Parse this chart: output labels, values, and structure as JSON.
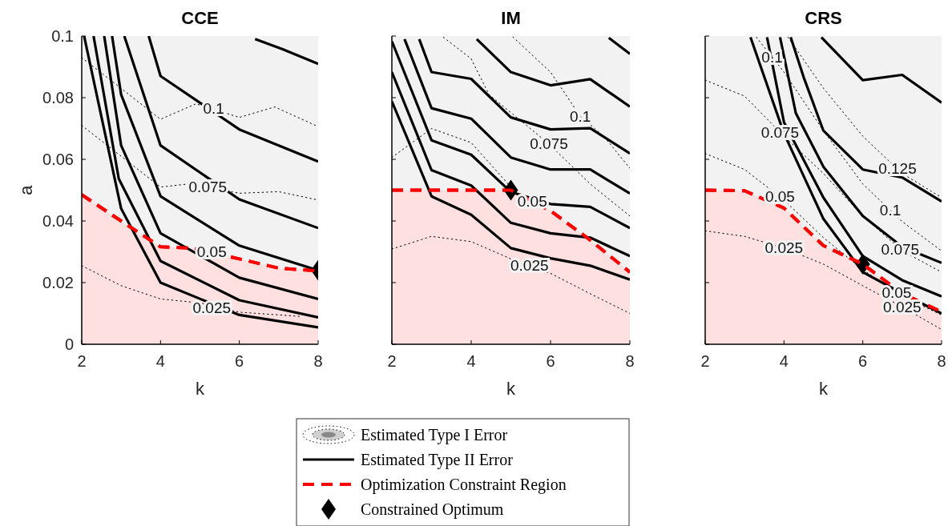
{
  "chart_data": [
    {
      "type": "line",
      "title": "CCE",
      "xlabel": "k",
      "ylabel": "a",
      "xlim": [
        2,
        8
      ],
      "ylim": [
        0,
        0.1
      ],
      "xticks": [
        2,
        4,
        6,
        8
      ],
      "yticks": [
        0,
        0.02,
        0.04,
        0.06,
        0.08,
        0.1
      ],
      "series": [
        {
          "type": "line",
          "line_style": "dotted",
          "color": "#000000",
          "x": [
            2,
            4,
            4.9,
            6,
            6.9,
            8
          ],
          "values": [
            0.093,
            0.073,
            0.078,
            0.0736,
            0.077,
            0.0706
          ]
        },
        {
          "type": "line",
          "line_style": "dotted",
          "color": "#000000",
          "x": [
            2,
            4,
            4.7,
            6,
            7,
            8
          ],
          "values": [
            0.071,
            0.051,
            0.052,
            0.049,
            0.0495,
            0.0468
          ]
        },
        {
          "type": "line",
          "line_style": "dotted",
          "color": "#000000",
          "x": [
            2,
            3,
            4,
            5,
            6,
            7.6
          ],
          "values": [
            0.0255,
            0.019,
            0.0147,
            0.0134,
            0.0104,
            0.009
          ]
        },
        {
          "type": "line",
          "line_style": "solid",
          "color": "#000000",
          "x": [
            2.06,
            3,
            4,
            6,
            8
          ],
          "values": [
            0.1,
            0.044,
            0.02,
            0.0095,
            0.0055
          ]
        },
        {
          "type": "line",
          "line_style": "solid",
          "color": "#000000",
          "x": [
            2.3,
            2.94,
            4,
            6,
            8
          ],
          "values": [
            0.1,
            0.0537,
            0.027,
            0.0143,
            0.0087
          ]
        },
        {
          "type": "line",
          "line_style": "solid",
          "color": "#000000",
          "x": [
            2.57,
            3,
            4,
            6,
            8
          ],
          "values": [
            0.1,
            0.0645,
            0.036,
            0.0216,
            0.0147
          ]
        },
        {
          "type": "line",
          "line_style": "solid",
          "color": "#000000",
          "x": [
            2.77,
            3,
            4,
            6,
            8
          ],
          "values": [
            0.1,
            0.081,
            0.048,
            0.032,
            0.024
          ]
        },
        {
          "type": "line",
          "line_style": "solid",
          "color": "#000000",
          "x": [
            3.08,
            4,
            6,
            8
          ],
          "values": [
            0.1,
            0.0645,
            0.047,
            0.0377
          ]
        },
        {
          "type": "line",
          "line_style": "solid",
          "color": "#000000",
          "x": [
            3.7,
            4,
            6,
            8
          ],
          "values": [
            0.1,
            0.087,
            0.0697,
            0.0593
          ]
        },
        {
          "type": "line",
          "line_style": "solid",
          "color": "#000000",
          "x": [
            6.4,
            7.1,
            8
          ],
          "values": [
            0.099,
            0.0957,
            0.091
          ]
        },
        {
          "type": "area",
          "line_style": "dashed",
          "color": "#ff0000",
          "x": [
            2,
            3,
            4,
            4.8,
            6,
            7,
            8
          ],
          "values": [
            0.0485,
            0.04,
            0.0316,
            0.0312,
            0.0277,
            0.0247,
            0.0238
          ]
        },
        {
          "type": "scatter",
          "marker": "diamond",
          "color": "#000000",
          "x": [
            8
          ],
          "values": [
            0.024
          ]
        }
      ],
      "annotations": [
        {
          "text": "0.1",
          "x": 5.35,
          "y": 0.0766
        },
        {
          "text": "0.075",
          "x": 5.2,
          "y": 0.051
        },
        {
          "text": "0.05",
          "x": 5.3,
          "y": 0.03
        },
        {
          "text": "0.025",
          "x": 5.3,
          "y": 0.0117
        }
      ]
    },
    {
      "type": "line",
      "title": "IM",
      "xlabel": "k",
      "xlim": [
        2,
        8
      ],
      "ylim": [
        0,
        0.1
      ],
      "xticks": [
        2,
        4,
        6,
        8
      ],
      "yticks": [
        0,
        0.02,
        0.04,
        0.06,
        0.08,
        0.1
      ],
      "tick_labels": "x",
      "legend": "bottom",
      "series": [
        {
          "type": "line",
          "name": "Estimated Type I Error",
          "line_style": "dotted",
          "color": "#000000",
          "x": [
            2,
            3,
            4,
            5,
            6,
            7,
            8
          ],
          "values": [
            0.0309,
            0.035,
            0.0333,
            0.0277,
            0.023,
            0.0164,
            0.01
          ]
        },
        {
          "type": "line",
          "line_style": "dotted",
          "color": "#000000",
          "x": [
            2,
            3,
            4,
            5
          ],
          "values": [
            0.0606,
            0.07,
            0.0654,
            0.051
          ]
        },
        {
          "type": "line",
          "line_style": "dotted",
          "color": "#000000",
          "x": [
            3.3,
            4,
            4.45,
            5.96,
            7,
            8
          ],
          "values": [
            0.0996,
            0.0926,
            0.081,
            0.065,
            0.052,
            0.0416
          ]
        },
        {
          "type": "line",
          "line_style": "dotted",
          "color": "#000000",
          "x": [
            5.05,
            6,
            6.75,
            7.34,
            8
          ],
          "values": [
            0.0997,
            0.0883,
            0.074,
            0.0675,
            0.0571
          ]
        },
        {
          "type": "line",
          "name": "Estimated Type II Error",
          "line_style": "solid",
          "color": "#000000",
          "x": [
            2,
            3,
            4,
            5,
            6,
            7,
            8
          ],
          "values": [
            0.0788,
            0.048,
            0.042,
            0.0312,
            0.0279,
            0.0255,
            0.021
          ]
        },
        {
          "type": "line",
          "line_style": "solid",
          "color": "#000000",
          "x": [
            2,
            3,
            4,
            5,
            6,
            7,
            8
          ],
          "values": [
            0.0883,
            0.0565,
            0.0515,
            0.0394,
            0.036,
            0.0346,
            0.0286
          ]
        },
        {
          "type": "line",
          "line_style": "solid",
          "color": "#000000",
          "x": [
            2,
            3,
            4,
            5,
            6,
            7,
            8
          ],
          "values": [
            0.0983,
            0.0662,
            0.0615,
            0.0494,
            0.0455,
            0.0446,
            0.0377
          ]
        },
        {
          "type": "line",
          "line_style": "solid",
          "color": "#000000",
          "x": [
            2.32,
            3,
            4,
            5,
            6,
            7,
            8
          ],
          "values": [
            0.099,
            0.0766,
            0.0732,
            0.0606,
            0.0567,
            0.0567,
            0.0489
          ]
        },
        {
          "type": "line",
          "line_style": "solid",
          "color": "#000000",
          "x": [
            2.69,
            3,
            4,
            5,
            6,
            7,
            8
          ],
          "values": [
            0.099,
            0.0883,
            0.0861,
            0.0736,
            0.0697,
            0.0701,
            0.0619
          ]
        },
        {
          "type": "line",
          "line_style": "solid",
          "color": "#000000",
          "x": [
            4.14,
            5,
            6,
            7,
            8
          ],
          "values": [
            0.099,
            0.0883,
            0.084,
            0.086,
            0.0771
          ]
        },
        {
          "type": "line",
          "line_style": "solid",
          "color": "#000000",
          "x": [
            7.47,
            8
          ],
          "values": [
            0.0994,
            0.0942
          ]
        },
        {
          "type": "area",
          "name": "Optimization Constraint Region",
          "line_style": "dashed",
          "color": "#ff0000",
          "x": [
            2,
            5,
            6,
            7,
            8
          ],
          "values": [
            0.05,
            0.05,
            0.0433,
            0.0338,
            0.0234
          ]
        },
        {
          "type": "scatter",
          "name": "Constrained Optimum",
          "marker": "diamond",
          "color": "#000000",
          "x": [
            5
          ],
          "values": [
            0.05
          ]
        }
      ],
      "annotations": [
        {
          "text": "0.1",
          "x": 6.75,
          "y": 0.074
        },
        {
          "text": "0.075",
          "x": 5.96,
          "y": 0.065
        },
        {
          "text": "0.05",
          "x": 5.54,
          "y": 0.0464
        },
        {
          "text": "0.025",
          "x": 5.47,
          "y": 0.0255
        }
      ]
    },
    {
      "type": "line",
      "title": "CRS",
      "xlabel": "k",
      "xlim": [
        2,
        8
      ],
      "ylim": [
        0,
        0.1
      ],
      "xticks": [
        2,
        4,
        6,
        8
      ],
      "yticks": [
        0,
        0.02,
        0.04,
        0.06,
        0.08,
        0.1
      ],
      "tick_labels": "x",
      "series": [
        {
          "type": "line",
          "line_style": "dotted",
          "color": "#000000",
          "x": [
            2,
            3,
            4,
            5,
            6,
            7,
            8
          ],
          "values": [
            0.0368,
            0.035,
            0.0312,
            0.026,
            0.019,
            0.0121,
            0.0048
          ]
        },
        {
          "type": "line",
          "line_style": "dotted",
          "color": "#000000",
          "x": [
            2,
            3,
            4,
            5,
            6,
            7,
            8
          ],
          "values": [
            0.0619,
            0.0567,
            0.0468,
            0.0346,
            0.0242,
            0.0156,
            0.0095
          ]
        },
        {
          "type": "line",
          "line_style": "dotted",
          "color": "#000000",
          "x": [
            2,
            3,
            4,
            5,
            6,
            7,
            8
          ],
          "values": [
            0.0857,
            0.0805,
            0.0675,
            0.0554,
            0.0416,
            0.0303,
            0.0234
          ]
        },
        {
          "type": "line",
          "line_style": "dotted",
          "color": "#000000",
          "x": [
            3.3,
            4,
            5,
            6,
            7,
            8
          ],
          "values": [
            0.0996,
            0.0883,
            0.0693,
            0.052,
            0.0398,
            0.0303
          ]
        },
        {
          "type": "line",
          "line_style": "dotted",
          "color": "#000000",
          "x": [
            4.1,
            5,
            6,
            7,
            8
          ],
          "values": [
            0.0996,
            0.0831,
            0.0675,
            0.0554,
            0.0476
          ]
        },
        {
          "type": "line",
          "line_style": "solid",
          "color": "#000000",
          "x": [
            3.15,
            4,
            5,
            6,
            7,
            8
          ],
          "values": [
            0.0996,
            0.0684,
            0.0407,
            0.0234,
            0.0165,
            0.01
          ]
        },
        {
          "type": "line",
          "line_style": "solid",
          "color": "#000000",
          "x": [
            3.57,
            4,
            5,
            6,
            7,
            8
          ],
          "values": [
            0.0996,
            0.072,
            0.0476,
            0.0286,
            0.0208,
            0.0155
          ]
        },
        {
          "type": "line",
          "line_style": "solid",
          "color": "#000000",
          "x": [
            3.9,
            4.3,
            5,
            6,
            7,
            8
          ],
          "values": [
            0.0996,
            0.075,
            0.0576,
            0.0416,
            0.0316,
            0.0264
          ]
        },
        {
          "type": "line",
          "line_style": "solid",
          "color": "#000000",
          "x": [
            4.17,
            4.5,
            5,
            6,
            7,
            8
          ],
          "values": [
            0.0996,
            0.0866,
            0.0693,
            0.0567,
            0.0541,
            0.0463
          ]
        },
        {
          "type": "line",
          "line_style": "solid",
          "color": "#000000",
          "x": [
            4.95,
            6,
            7,
            8
          ],
          "values": [
            0.0996,
            0.0857,
            0.0874,
            0.0784
          ]
        },
        {
          "type": "area",
          "line_style": "dashed",
          "color": "#ff0000",
          "x": [
            2,
            3,
            4,
            5,
            6,
            7,
            8
          ],
          "values": [
            0.05,
            0.0498,
            0.0442,
            0.032,
            0.026,
            0.0165,
            0.0105
          ]
        },
        {
          "type": "scatter",
          "marker": "diamond",
          "color": "#000000",
          "x": [
            6
          ],
          "values": [
            0.026
          ]
        }
      ],
      "annotations": [
        {
          "text": "0.1",
          "x": 3.7,
          "y": 0.0931
        },
        {
          "text": "0.075",
          "x": 3.9,
          "y": 0.0688
        },
        {
          "text": "0.05",
          "x": 3.9,
          "y": 0.0478
        },
        {
          "text": "0.025",
          "x": 4,
          "y": 0.0312
        },
        {
          "text": "0.125",
          "x": 6.88,
          "y": 0.0569
        },
        {
          "text": "0.1",
          "x": 6.7,
          "y": 0.0435
        },
        {
          "text": "0.075",
          "x": 6.95,
          "y": 0.0309
        },
        {
          "text": "0.05",
          "x": 6.86,
          "y": 0.0168
        },
        {
          "text": "0.025",
          "x": 7,
          "y": 0.0121
        }
      ]
    }
  ]
}
